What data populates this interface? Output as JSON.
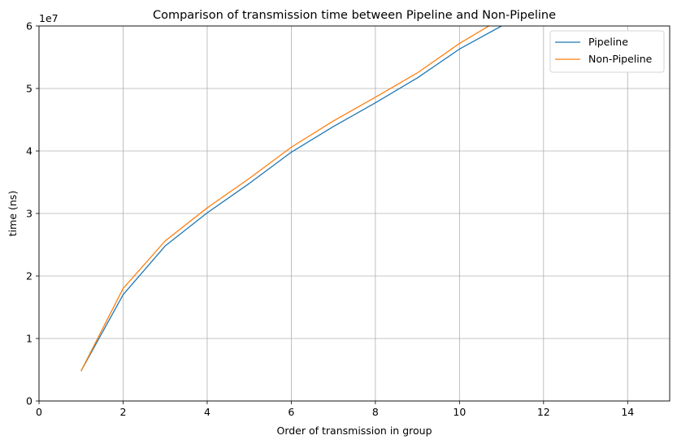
{
  "chart_data": {
    "type": "line",
    "title": "Comparison of transmission time between Pipeline and Non-Pipeline",
    "xlabel": "Order of transmission in group",
    "ylabel": "time (ns)",
    "y_multiplier_label": "1e7",
    "x_ticks": [
      "0",
      "2",
      "4",
      "6",
      "8",
      "10",
      "12",
      "14"
    ],
    "y_ticks": [
      "0",
      "1",
      "2",
      "3",
      "4",
      "5",
      "6"
    ],
    "xlim": [
      0,
      15
    ],
    "ylim": [
      0,
      60000000
    ],
    "grid": true,
    "legend_position": "top-right",
    "x": [
      1,
      2,
      3,
      4,
      5,
      6,
      7,
      8,
      9,
      10,
      11
    ],
    "series": [
      {
        "name": "Pipeline",
        "color": "#1f77b4",
        "values": [
          4800000,
          17000000,
          24800000,
          30100000,
          34800000,
          39800000,
          43900000,
          47700000,
          51700000,
          56300000,
          60000000
        ]
      },
      {
        "name": "Non-Pipeline",
        "color": "#ff7f0e",
        "values": [
          4800000,
          18000000,
          25600000,
          30900000,
          35600000,
          40600000,
          44800000,
          48600000,
          52500000,
          57200000,
          61200000
        ]
      }
    ]
  }
}
